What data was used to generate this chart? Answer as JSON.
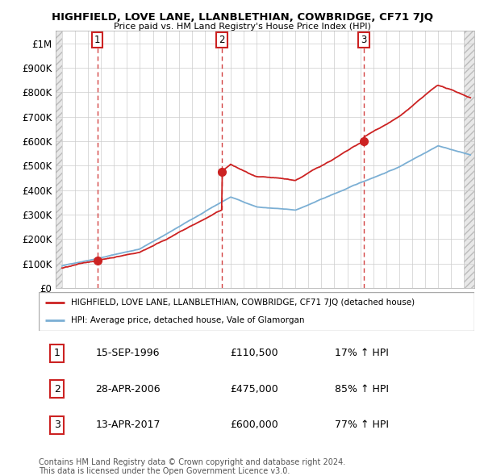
{
  "title": "HIGHFIELD, LOVE LANE, LLANBLETHIAN, COWBRIDGE, CF71 7JQ",
  "subtitle": "Price paid vs. HM Land Registry's House Price Index (HPI)",
  "xlim_start": 1993.5,
  "xlim_end": 2025.8,
  "ylim_min": 0,
  "ylim_max": 1050000,
  "yticks": [
    0,
    100000,
    200000,
    300000,
    400000,
    500000,
    600000,
    700000,
    800000,
    900000,
    1000000
  ],
  "ytick_labels": [
    "£0",
    "£100K",
    "£200K",
    "£300K",
    "£400K",
    "£500K",
    "£600K",
    "£700K",
    "£800K",
    "£900K",
    "£1M"
  ],
  "xticks": [
    1994,
    1995,
    1996,
    1997,
    1998,
    1999,
    2000,
    2001,
    2002,
    2003,
    2004,
    2005,
    2006,
    2007,
    2008,
    2009,
    2010,
    2011,
    2012,
    2013,
    2014,
    2015,
    2016,
    2017,
    2018,
    2019,
    2020,
    2021,
    2022,
    2023,
    2024,
    2025
  ],
  "hpi_color": "#7bafd4",
  "price_color": "#cc2222",
  "sale_dates": [
    1996.72,
    2006.33,
    2017.28
  ],
  "sale_prices": [
    110500,
    475000,
    600000
  ],
  "sale_labels": [
    "1",
    "2",
    "3"
  ],
  "sale_date_strs": [
    "15-SEP-1996",
    "28-APR-2006",
    "13-APR-2017"
  ],
  "sale_price_strs": [
    "£110,500",
    "£475,000",
    "£600,000"
  ],
  "sale_hpi_strs": [
    "17% ↑ HPI",
    "85% ↑ HPI",
    "77% ↑ HPI"
  ],
  "legend_label1": "HIGHFIELD, LOVE LANE, LLANBLETHIAN, COWBRIDGE, CF71 7JQ (detached house)",
  "legend_label2": "HPI: Average price, detached house, Vale of Glamorgan",
  "footer_line1": "Contains HM Land Registry data © Crown copyright and database right 2024.",
  "footer_line2": "This data is licensed under the Open Government Licence v3.0.",
  "grid_color": "#cccccc",
  "bg_color": "#ffffff",
  "hatch_bg": "#e8e8e8"
}
